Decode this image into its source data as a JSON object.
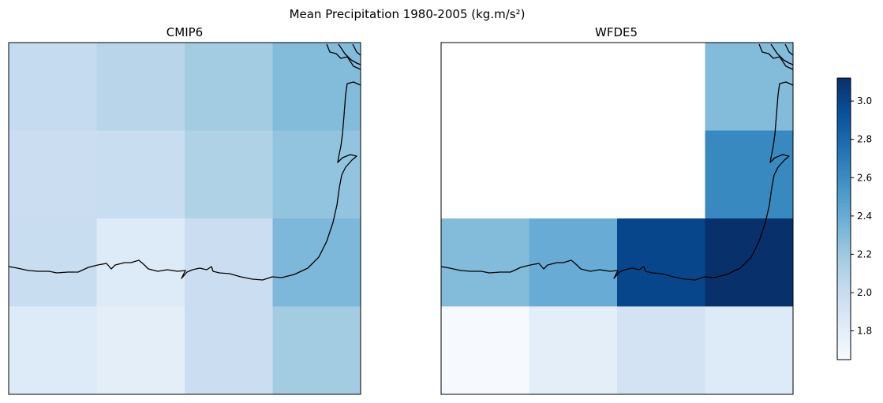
{
  "figure": {
    "title": "Mean Precipitation 1980-2005 (kg.m/s²)"
  },
  "chart_data": [
    {
      "type": "heatmap",
      "title": "CMIP6",
      "grid_rows": 4,
      "grid_cols": 4,
      "values": [
        [
          2.02,
          2.08,
          2.18,
          2.3
        ],
        [
          1.98,
          2.0,
          2.12,
          2.24
        ],
        [
          2.0,
          1.84,
          1.98,
          2.32
        ],
        [
          1.84,
          1.8,
          1.98,
          2.18
        ]
      ],
      "missing": [],
      "xlabel": "",
      "ylabel": ""
    },
    {
      "type": "heatmap",
      "title": "WFDE5",
      "grid_rows": 4,
      "grid_cols": 4,
      "values": [
        [
          null,
          null,
          null,
          2.3
        ],
        [
          null,
          null,
          null,
          2.62
        ],
        [
          2.3,
          2.4,
          3.0,
          3.12
        ],
        [
          1.66,
          1.8,
          1.92,
          1.84
        ]
      ],
      "missing": "cells with null value are masked (no data, drawn white)",
      "xlabel": "",
      "ylabel": ""
    }
  ],
  "colorbar": {
    "colormap": "Blues",
    "vmin": 1.65,
    "vmax": 3.12,
    "ticks": [
      "1.8",
      "2.0",
      "2.2",
      "2.4",
      "2.6",
      "2.8",
      "3.0"
    ],
    "tick_values": [
      1.8,
      2.0,
      2.2,
      2.4,
      2.6,
      2.8,
      3.0
    ]
  },
  "colors": {
    "coastline": "#000000",
    "masked": "#ffffff",
    "frame": "#000000"
  }
}
